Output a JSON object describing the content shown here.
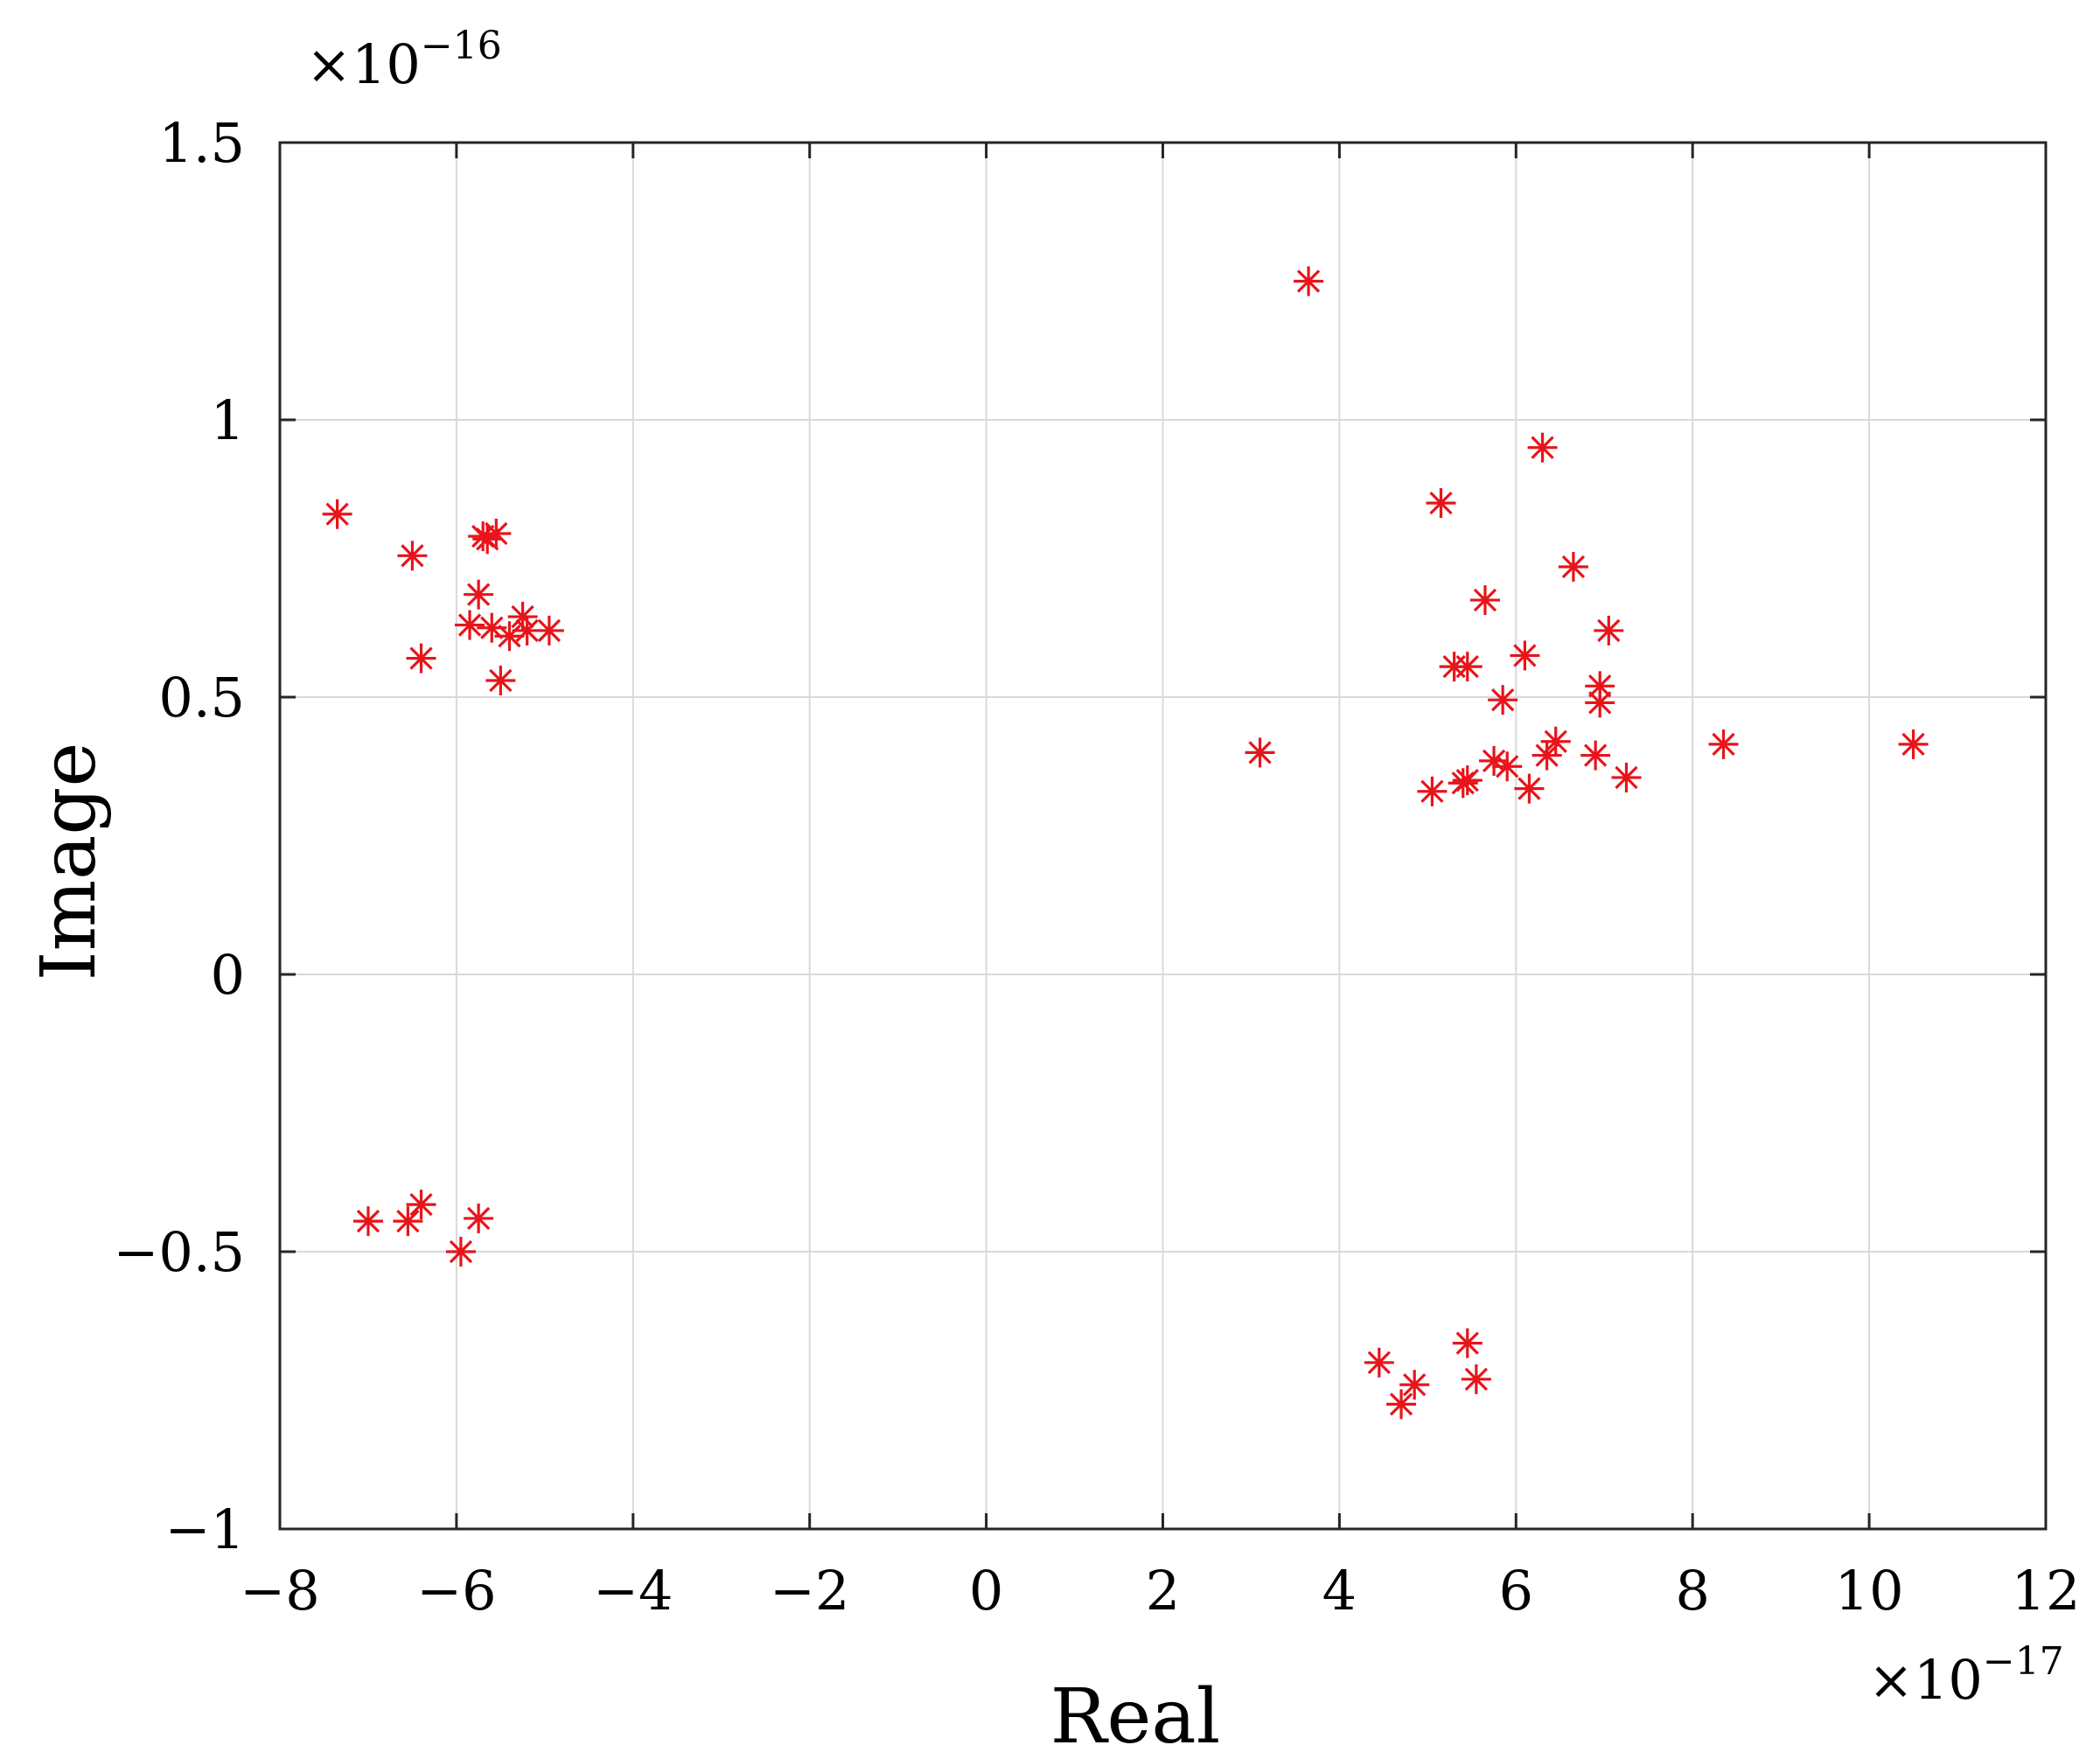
{
  "chart_data": {
    "type": "scatter",
    "title": "",
    "xlabel": "Real",
    "ylabel": "Image",
    "x_multiplier": "×10",
    "x_exponent": "−17",
    "y_multiplier": "×10",
    "y_exponent": "−16",
    "xlim": [
      -8,
      12
    ],
    "ylim": [
      -1,
      1.5
    ],
    "x_ticks": [
      -8,
      -6,
      -4,
      -2,
      0,
      2,
      4,
      6,
      8,
      10,
      12
    ],
    "x_tick_labels": [
      "−8",
      "−6",
      "−4",
      "−2",
      "0",
      "2",
      "4",
      "6",
      "8",
      "10",
      "12"
    ],
    "y_ticks": [
      1.5,
      1,
      0.5,
      0,
      -0.5,
      -1
    ],
    "y_tick_labels": [
      "1.5",
      "1",
      "0.5",
      "0",
      "−0.5",
      "−1"
    ],
    "grid": true,
    "marker": "asterisk",
    "marker_color": "#e8141a",
    "points": [
      {
        "x": -7.35,
        "y": 0.83
      },
      {
        "x": -6.5,
        "y": 0.755
      },
      {
        "x": -6.4,
        "y": 0.57
      },
      {
        "x": -5.7,
        "y": 0.79
      },
      {
        "x": -5.65,
        "y": 0.785
      },
      {
        "x": -5.55,
        "y": 0.795
      },
      {
        "x": -5.75,
        "y": 0.685
      },
      {
        "x": -5.85,
        "y": 0.63
      },
      {
        "x": -5.6,
        "y": 0.625
      },
      {
        "x": -5.4,
        "y": 0.61
      },
      {
        "x": -5.25,
        "y": 0.645
      },
      {
        "x": -5.2,
        "y": 0.62
      },
      {
        "x": -4.95,
        "y": 0.62
      },
      {
        "x": -5.5,
        "y": 0.53
      },
      {
        "x": -7.0,
        "y": -0.445
      },
      {
        "x": -6.55,
        "y": -0.445
      },
      {
        "x": -6.4,
        "y": -0.415
      },
      {
        "x": -5.75,
        "y": -0.44
      },
      {
        "x": -5.95,
        "y": -0.5
      },
      {
        "x": 3.65,
        "y": 1.25
      },
      {
        "x": 3.1,
        "y": 0.4
      },
      {
        "x": 6.3,
        "y": 0.95
      },
      {
        "x": 5.15,
        "y": 0.85
      },
      {
        "x": 6.65,
        "y": 0.735
      },
      {
        "x": 5.65,
        "y": 0.675
      },
      {
        "x": 7.05,
        "y": 0.62
      },
      {
        "x": 6.1,
        "y": 0.575
      },
      {
        "x": 5.3,
        "y": 0.555
      },
      {
        "x": 5.45,
        "y": 0.555
      },
      {
        "x": 6.95,
        "y": 0.52
      },
      {
        "x": 5.85,
        "y": 0.495
      },
      {
        "x": 6.95,
        "y": 0.49
      },
      {
        "x": 6.45,
        "y": 0.42
      },
      {
        "x": 6.35,
        "y": 0.395
      },
      {
        "x": 6.9,
        "y": 0.395
      },
      {
        "x": 5.75,
        "y": 0.385
      },
      {
        "x": 5.9,
        "y": 0.375
      },
      {
        "x": 5.45,
        "y": 0.35
      },
      {
        "x": 5.4,
        "y": 0.345
      },
      {
        "x": 7.25,
        "y": 0.355
      },
      {
        "x": 5.05,
        "y": 0.33
      },
      {
        "x": 6.15,
        "y": 0.335
      },
      {
        "x": 8.35,
        "y": 0.415
      },
      {
        "x": 10.5,
        "y": 0.415
      },
      {
        "x": 4.45,
        "y": -0.7
      },
      {
        "x": 4.85,
        "y": -0.74
      },
      {
        "x": 4.7,
        "y": -0.775
      },
      {
        "x": 5.45,
        "y": -0.665
      },
      {
        "x": 5.55,
        "y": -0.73
      }
    ]
  }
}
